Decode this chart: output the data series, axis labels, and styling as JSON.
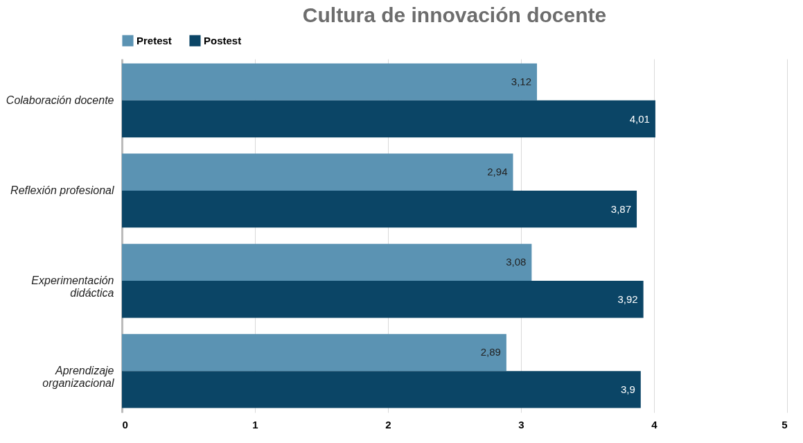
{
  "chart_data": {
    "type": "bar",
    "orientation": "horizontal",
    "title": "Cultura de innovación docente",
    "categories": [
      "Colaboración docente",
      "Reflexión profesional",
      "Experimentación didáctica",
      "Aprendizaje organizacional"
    ],
    "series": [
      {
        "name": "Pretest",
        "color": "#5b93b3",
        "values": [
          3.12,
          2.94,
          3.08,
          2.89
        ],
        "value_labels": [
          "3,12",
          "2,94",
          "3,08",
          "2,89"
        ]
      },
      {
        "name": "Postest",
        "color": "#0b4566",
        "values": [
          4.01,
          3.87,
          3.92,
          3.9
        ],
        "value_labels": [
          "4,01",
          "3,87",
          "3,92",
          "3,9"
        ]
      }
    ],
    "xlim": [
      0,
      5
    ],
    "xticks": [
      0,
      1,
      2,
      3,
      4,
      5
    ],
    "grid": "x",
    "legend": "top"
  }
}
